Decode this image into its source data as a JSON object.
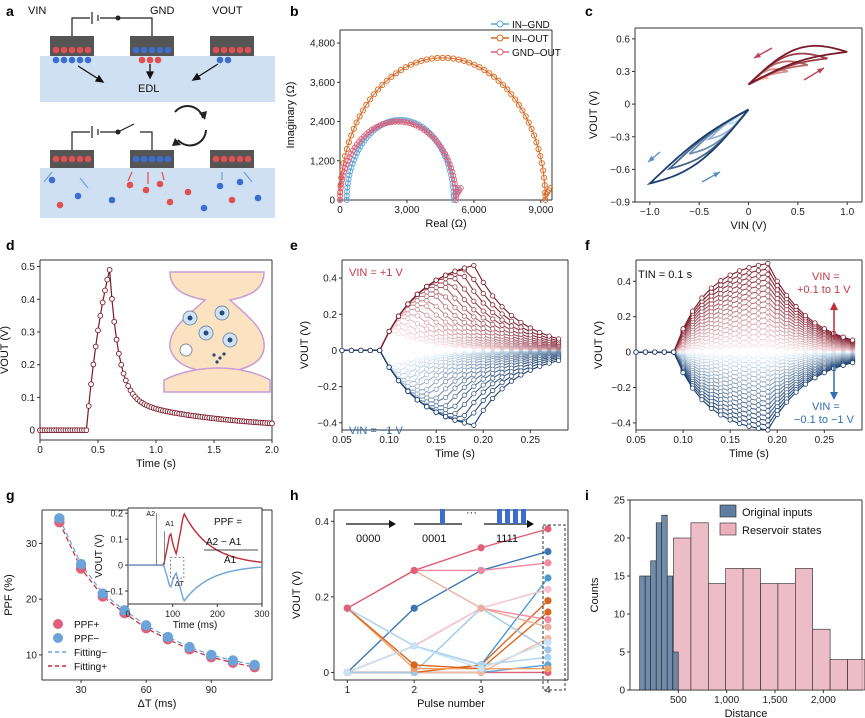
{
  "panels": {
    "a": {
      "letter": "a",
      "vin": "VIN",
      "gnd": "GND",
      "vout": "VOUT",
      "edl": "EDL"
    },
    "b": {
      "letter": "b"
    },
    "c": {
      "letter": "c"
    },
    "d": {
      "letter": "d"
    },
    "e": {
      "letter": "e",
      "ann_top": "VIN = +1 V",
      "ann_bot": "VIN = −1 V"
    },
    "f": {
      "letter": "f",
      "ann_tin": "TIN = 0.1 s",
      "ann_top1": "VIN =",
      "ann_top2": "+0.1 to 1 V",
      "ann_bot1": "VIN =",
      "ann_bot2": "−0.1 to −1 V"
    },
    "g": {
      "letter": "g",
      "ppf_eq": "PPF =",
      "ppf_num": "A2 − A1",
      "ppf_den": "A1",
      "a1": "A1",
      "a2": "A2",
      "dt": "ΔT"
    },
    "h": {
      "letter": "h",
      "seq": [
        "0000",
        "0001",
        "···",
        "1111"
      ]
    },
    "i": {
      "letter": "i"
    }
  },
  "colors": {
    "in_gnd": "#5aa5d8",
    "in_out": "#d9661f",
    "gnd_out": "#e0607a",
    "red": "#c02a3a",
    "blue": "#2f6fae",
    "dark": "#7b1a2a",
    "navy": "#1c3f6e",
    "hist_orig": "#5f7fa1",
    "hist_res": "#eab1bd",
    "substrate": "#cfe0f3"
  },
  "chart_data": [
    {
      "id": "b",
      "type": "line",
      "xlabel": "Real (Ω)",
      "ylabel": "Imaginary (Ω)",
      "xlim": [
        0,
        9500
      ],
      "ylim": [
        0,
        5200
      ],
      "xticks": [
        0,
        3000,
        6000,
        9000
      ],
      "yticks": [
        0,
        1200,
        2400,
        3600,
        4800
      ],
      "xtick_labels": [
        "0",
        "3,000",
        "6,000",
        "9,000"
      ],
      "ytick_labels": [
        "0",
        "1,200",
        "2,400",
        "3,600",
        "4,800"
      ],
      "legend": [
        "IN–GND",
        "IN–OUT",
        "GND–OUT"
      ],
      "series": [
        {
          "name": "IN–GND",
          "center": 2700,
          "radius": 2400,
          "peak": 2450
        },
        {
          "name": "IN–OUT",
          "center": 4600,
          "radius": 4600,
          "peak": 4350
        },
        {
          "name": "GND–OUT",
          "center": 2600,
          "radius": 2600,
          "peak": 2400
        }
      ]
    },
    {
      "id": "c",
      "type": "line",
      "xlabel": "VIN (V)",
      "ylabel": "VOUT (V)",
      "xlim": [
        -1.15,
        1.15
      ],
      "ylim": [
        -0.9,
        0.7
      ],
      "xticks": [
        -1.0,
        -0.5,
        0,
        0.5,
        1.0
      ],
      "yticks": [
        -0.9,
        -0.6,
        -0.3,
        0,
        0.3,
        0.6
      ],
      "xtick_labels": [
        "−1.0",
        "−0.5",
        "0",
        "0.5",
        "1.0"
      ],
      "ytick_labels": [
        "−0.9",
        "−0.6",
        "−0.3",
        "0",
        "0.3",
        "0.6"
      ],
      "amplitudes": [
        0.2,
        0.4,
        0.6,
        0.8,
        1.0
      ]
    },
    {
      "id": "d",
      "type": "line",
      "xlabel": "Time (s)",
      "ylabel": "VOUT (V)",
      "xlim": [
        0,
        2.0
      ],
      "ylim": [
        -0.03,
        0.52
      ],
      "xticks": [
        0,
        0.5,
        1.0,
        1.5,
        2.0
      ],
      "yticks": [
        0,
        0.1,
        0.2,
        0.3,
        0.4,
        0.5
      ],
      "xtick_labels": [
        "0",
        "0.5",
        "1.0",
        "1.5",
        "2.0"
      ],
      "ytick_labels": [
        "0",
        "0.1",
        "0.2",
        "0.3",
        "0.4",
        "0.5"
      ],
      "pulse_start": 0.4,
      "pulse_end": 0.6,
      "peak": 0.49
    },
    {
      "id": "e",
      "type": "line",
      "xlabel": "Time (s)",
      "ylabel": "VOUT (V)",
      "xlim": [
        0.05,
        0.29
      ],
      "ylim": [
        -0.44,
        0.5
      ],
      "xticks": [
        0.05,
        0.1,
        0.15,
        0.2,
        0.25
      ],
      "yticks": [
        -0.4,
        -0.2,
        0,
        0.2,
        0.4
      ],
      "xtick_labels": [
        "0.05",
        "0.10",
        "0.15",
        "0.20",
        "0.25"
      ],
      "ytick_labels": [
        "−0.4",
        "−0.2",
        "0",
        "0.2",
        "0.4"
      ],
      "mode": "duration"
    },
    {
      "id": "f",
      "type": "line",
      "xlabel": "Time (s)",
      "ylabel": "VOUT (V)",
      "xlim": [
        0.05,
        0.29
      ],
      "ylim": [
        -0.44,
        0.52
      ],
      "xticks": [
        0.05,
        0.1,
        0.15,
        0.2,
        0.25
      ],
      "yticks": [
        -0.4,
        -0.2,
        0,
        0.2,
        0.4
      ],
      "xtick_labels": [
        "0.05",
        "0.10",
        "0.15",
        "0.20",
        "0.25"
      ],
      "ytick_labels": [
        "−0.4",
        "−0.2",
        "0",
        "0.2",
        "0.4"
      ],
      "mode": "amplitude"
    },
    {
      "id": "g",
      "type": "scatter",
      "xlabel": "ΔT (ms)",
      "ylabel": "PPF (%)",
      "xlim": [
        12,
        118
      ],
      "ylim": [
        5.5,
        36
      ],
      "xticks": [
        30,
        60,
        90
      ],
      "yticks": [
        10,
        20,
        30
      ],
      "xtick_labels": [
        "30",
        "60",
        "90"
      ],
      "ytick_labels": [
        "10",
        "20",
        "30"
      ],
      "x": [
        20,
        30,
        40,
        50,
        60,
        70,
        80,
        90,
        100,
        110
      ],
      "series": [
        {
          "name": "PPF+",
          "values": [
            33.8,
            25.5,
            20.5,
            17.5,
            14.8,
            12.8,
            11.0,
            9.6,
            8.6,
            7.8
          ]
        },
        {
          "name": "PPF−",
          "values": [
            34.5,
            26.3,
            21.0,
            18.0,
            15.3,
            13.2,
            11.4,
            10.0,
            9.0,
            8.2
          ]
        }
      ],
      "legend": [
        "PPF+",
        "PPF−",
        "Fitting−",
        "Fitting+"
      ],
      "inset": {
        "xlabel": "Time (ms)",
        "ylabel": "VOUT (V)",
        "xlim": [
          0,
          300
        ],
        "ylim": [
          -0.15,
          0.22
        ],
        "xticks": [
          0,
          100,
          200,
          300
        ],
        "yticks": [
          -0.1,
          0,
          0.1,
          0.2
        ],
        "xtick_labels": [
          "0",
          "100",
          "200",
          "300"
        ],
        "ytick_labels": [
          "−0.1",
          "0",
          "0.1",
          "0.2"
        ]
      }
    },
    {
      "id": "h",
      "type": "line",
      "xlabel": "Pulse number",
      "ylabel": "VOUT (V)",
      "xlim": [
        0.8,
        4.3
      ],
      "ylim": [
        -0.02,
        0.43
      ],
      "xticks": [
        1,
        2,
        3,
        4
      ],
      "yticks": [
        0,
        0.2,
        0.4
      ],
      "xtick_labels": [
        "1",
        "2",
        "3",
        "4"
      ],
      "ytick_labels": [
        "0",
        "0.2",
        "0.4"
      ],
      "series": [
        {
          "values": [
            0,
            0,
            0,
            0
          ],
          "color": "#e0607a"
        },
        {
          "values": [
            0,
            0,
            0,
            0.02
          ],
          "color": "#5aa5d8"
        },
        {
          "values": [
            0,
            0,
            0,
            0.09
          ],
          "color": "#f2b9a0"
        },
        {
          "values": [
            0,
            0,
            0.02,
            0.19
          ],
          "color": "#d9661f"
        },
        {
          "values": [
            0,
            0,
            0.17,
            0.06
          ],
          "color": "#9ec8e8"
        },
        {
          "values": [
            0,
            0.17,
            0.27,
            0.32
          ],
          "color": "#3c78b4"
        },
        {
          "values": [
            0,
            0.07,
            0.02,
            0.25
          ],
          "color": "#4a9ad0"
        },
        {
          "values": [
            0,
            0.07,
            0.17,
            0.14
          ],
          "color": "#f08aa0"
        },
        {
          "values": [
            0.17,
            0.01,
            0.01,
            0.01
          ],
          "color": "#f3a06a"
        },
        {
          "values": [
            0.17,
            0.02,
            0.01,
            0.16
          ],
          "color": "#d9661f"
        },
        {
          "values": [
            0.17,
            0.07,
            0.17,
            0.22
          ],
          "color": "#f7c0cc"
        },
        {
          "values": [
            0.17,
            0.07,
            0.02,
            0.04
          ],
          "color": "#a8d4f0"
        },
        {
          "values": [
            0.17,
            0.27,
            0.17,
            0.12
          ],
          "color": "#eab0a0"
        },
        {
          "values": [
            0.17,
            0.27,
            0.27,
            0.29
          ],
          "color": "#f08aa0"
        },
        {
          "values": [
            0,
            0.07,
            0.01,
            0.08
          ],
          "color": "#c9e2f4"
        },
        {
          "values": [
            0.17,
            0.27,
            0.33,
            0.38
          ],
          "color": "#e0607a"
        }
      ]
    },
    {
      "id": "i",
      "type": "bar",
      "xlabel": "Distance",
      "ylabel": "Counts",
      "xlim": [
        0,
        2400
      ],
      "ylim": [
        0,
        25
      ],
      "xticks": [
        500,
        1000,
        1500,
        2000
      ],
      "yticks": [
        0,
        5,
        10,
        15,
        20,
        25
      ],
      "xtick_labels": [
        "500",
        "1,000",
        "1,500",
        "2,000"
      ],
      "ytick_labels": [
        "0",
        "5",
        "10",
        "15",
        "20",
        "25"
      ],
      "legend": [
        "Original inputs",
        "Reservoir states"
      ],
      "series": [
        {
          "name": "Original inputs",
          "bin_start": 100,
          "bin_width": 57,
          "values": [
            15,
            15,
            17,
            22,
            23,
            15,
            5
          ]
        },
        {
          "name": "Reservoir states",
          "bin_start": 450,
          "bin_width": 180,
          "values": [
            20,
            22,
            14,
            16,
            16,
            14,
            14,
            16,
            8,
            4,
            4
          ]
        }
      ]
    }
  ]
}
